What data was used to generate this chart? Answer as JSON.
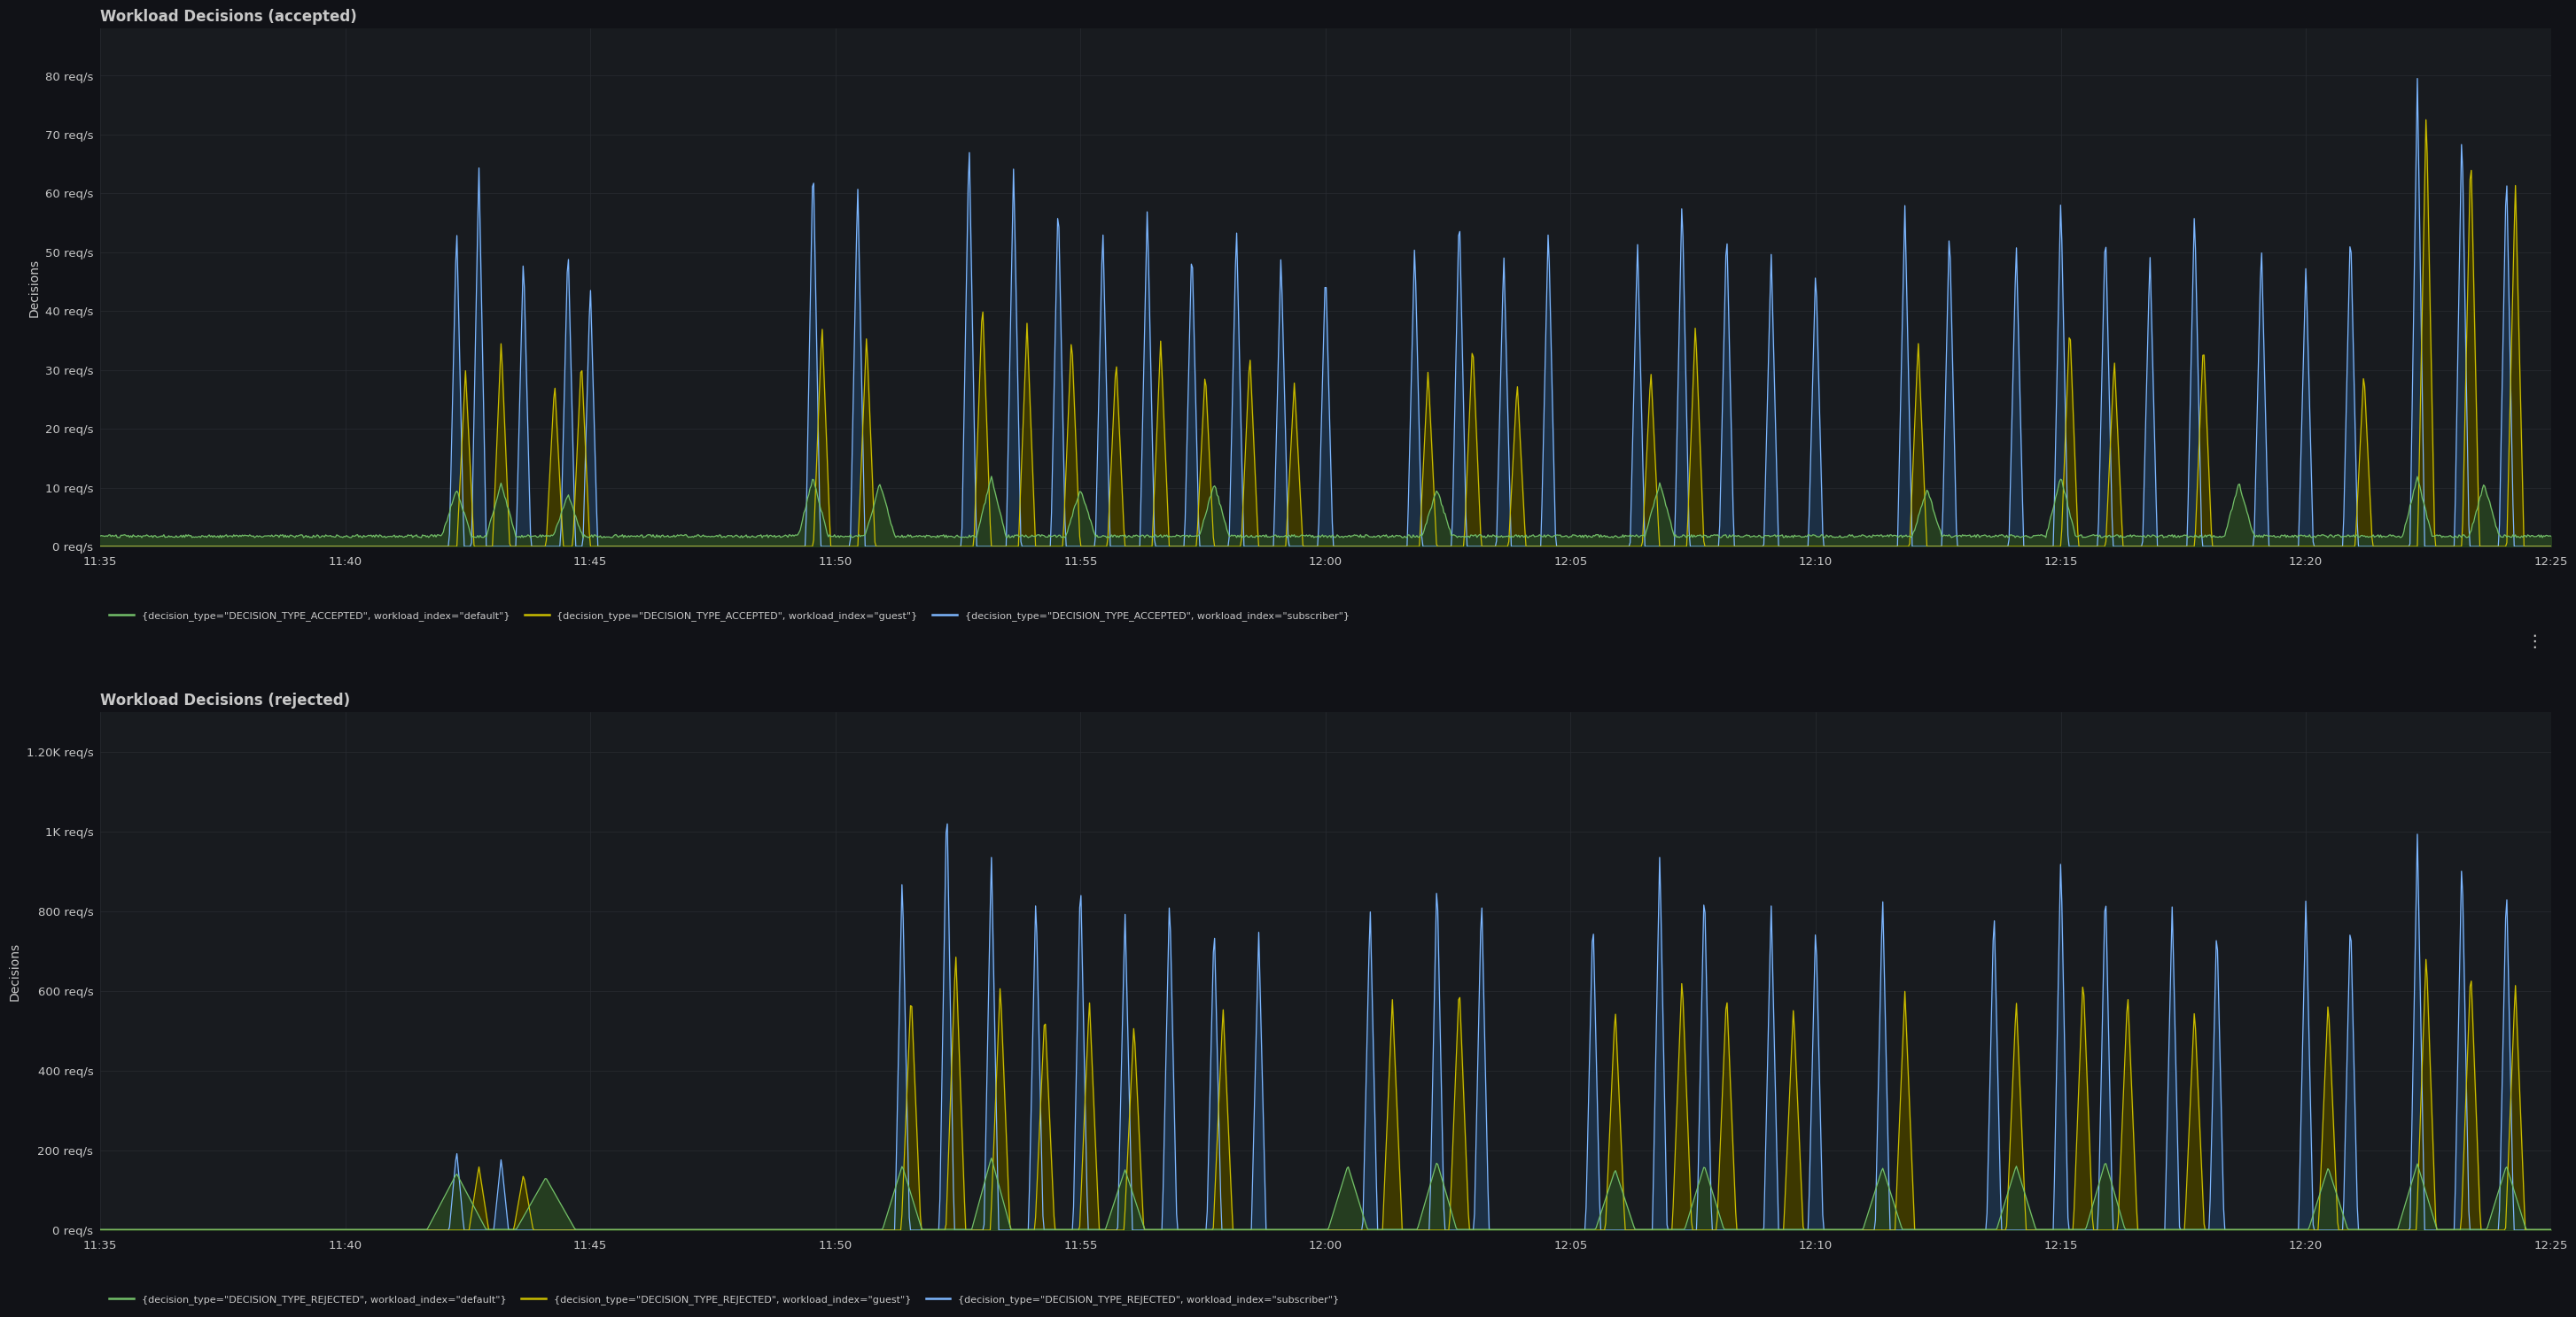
{
  "title_accepted": "Workload Decisions (accepted)",
  "title_rejected": "Workload Decisions (rejected)",
  "bg_color": "#111217",
  "panel_bg": "#181b1f",
  "grid_color": "#2a2d33",
  "text_color": "#c8c8c8",
  "ylabel": "Decisions",
  "xlabel_ticks": [
    "11:35",
    "11:40",
    "11:45",
    "11:50",
    "11:55",
    "12:00",
    "12:05",
    "12:10",
    "12:15",
    "12:20",
    "12:25"
  ],
  "yticks_accepted": [
    0,
    10,
    20,
    30,
    40,
    50,
    60,
    70,
    80
  ],
  "yticks_rejected": [
    0,
    200,
    400,
    600,
    800,
    1000,
    1200
  ],
  "ytick_labels_accepted": [
    "0 req/s",
    "10 req/s",
    "20 req/s",
    "30 req/s",
    "40 req/s",
    "50 req/s",
    "60 req/s",
    "70 req/s",
    "80 req/s"
  ],
  "ytick_labels_rejected": [
    "0 req/s",
    "200 req/s",
    "400 req/s",
    "600 req/s",
    "800 req/s",
    "1K req/s",
    "1.20K req/s"
  ],
  "color_default": "#73bf69",
  "color_guest": "#cabd00",
  "color_subscriber": "#7eb7ff",
  "legend_accepted": [
    "{decision_type=\"DECISION_TYPE_ACCEPTED\", workload_index=\"default\"}",
    "{decision_type=\"DECISION_TYPE_ACCEPTED\", workload_index=\"guest\"}",
    "{decision_type=\"DECISION_TYPE_ACCEPTED\", workload_index=\"subscriber\"}"
  ],
  "legend_rejected": [
    "{decision_type=\"DECISION_TYPE_REJECTED\", workload_index=\"default\"}",
    "{decision_type=\"DECISION_TYPE_REJECTED\", workload_index=\"guest\"}",
    "{decision_type=\"DECISION_TYPE_REJECTED\", workload_index=\"subscriber\"}"
  ]
}
